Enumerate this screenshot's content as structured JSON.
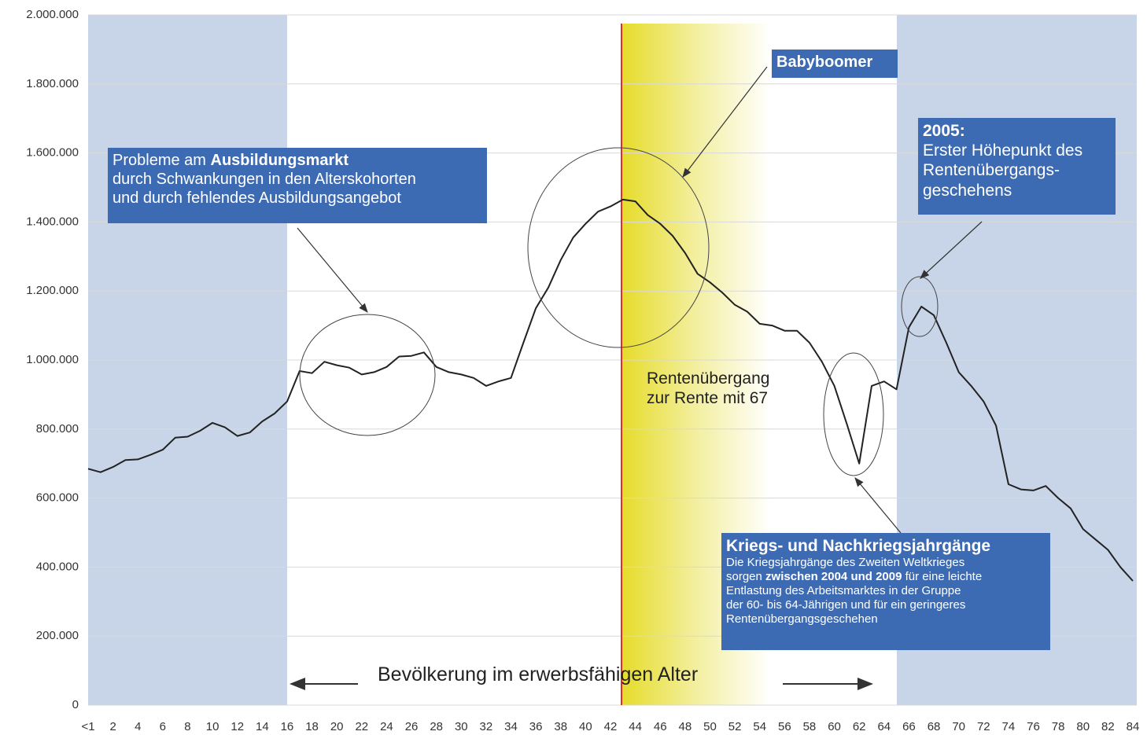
{
  "chart_data": {
    "type": "line",
    "categories": [
      "<1",
      null,
      "2",
      null,
      "4",
      null,
      "6",
      null,
      "8",
      null,
      "10",
      null,
      "12",
      null,
      "14",
      null,
      "16",
      null,
      "18",
      null,
      "20",
      null,
      "22",
      null,
      "24",
      null,
      "26",
      null,
      "28",
      null,
      "30",
      null,
      "32",
      null,
      "34",
      null,
      "36",
      null,
      "38",
      null,
      "40",
      null,
      "42",
      null,
      "44",
      null,
      "46",
      null,
      "48",
      null,
      "50",
      null,
      "52",
      null,
      "54",
      null,
      "56",
      null,
      "58",
      null,
      "60",
      null,
      "62",
      null,
      "64",
      null,
      "66",
      null,
      "68",
      null,
      "70",
      null,
      "72",
      null,
      "74",
      null,
      "76",
      null,
      "78",
      null,
      "80",
      null,
      "82",
      null,
      "84"
    ],
    "values": [
      685000,
      675000,
      690000,
      710000,
      712000,
      725000,
      740000,
      775000,
      778000,
      795000,
      818000,
      805000,
      780000,
      790000,
      822000,
      845000,
      880000,
      968000,
      962000,
      995000,
      985000,
      978000,
      958000,
      965000,
      980000,
      1010000,
      1012000,
      1022000,
      980000,
      965000,
      958000,
      948000,
      925000,
      938000,
      948000,
      1050000,
      1150000,
      1210000,
      1290000,
      1355000,
      1395000,
      1430000,
      1445000,
      1465000,
      1460000,
      1420000,
      1395000,
      1360000,
      1310000,
      1250000,
      1225000,
      1195000,
      1160000,
      1140000,
      1105000,
      1100000,
      1085000,
      1085000,
      1050000,
      995000,
      925000,
      815000,
      700000,
      925000,
      938000,
      915000,
      1095000,
      1155000,
      1130000,
      1050000,
      965000,
      925000,
      880000,
      810000,
      640000,
      625000,
      622000,
      635000,
      600000,
      570000,
      510000,
      480000,
      450000,
      400000,
      360000
    ],
    "color": "#222222",
    "ylim": [
      0,
      2000000
    ],
    "yticks": [
      0,
      {
        "value": 200000,
        "label": "200.000"
      },
      {
        "value": 400000,
        "label": "400.000"
      },
      {
        "value": 600000,
        "label": "600.000"
      },
      {
        "value": 800000,
        "label": "800.000"
      },
      {
        "value": 1000000,
        "label": "1.000.000"
      },
      {
        "value": 1200000,
        "label": "1.200.000"
      },
      {
        "value": 1400000,
        "label": "1.400.000"
      },
      {
        "value": 1600000,
        "label": "1.600.000"
      },
      {
        "value": 1800000,
        "label": "1.800.000"
      },
      {
        "value": 2000000,
        "label": "2.000.000"
      }
    ],
    "grid": true,
    "annotations": {
      "ausbildung": [
        [
          {
            "text": "Probleme am "
          },
          {
            "text": "Ausbildungsmarkt",
            "bold": true
          }
        ],
        [
          {
            "text": "durch Schwankungen in den Alterskohorten"
          }
        ],
        [
          {
            "text": "und durch fehlendes Ausbildungsangebot"
          }
        ]
      ],
      "babyboomer": [
        [
          {
            "text": "Babyboomer",
            "bold": true
          }
        ]
      ],
      "hoehepunkt": [
        [
          {
            "text": "2005:",
            "bold": true
          }
        ],
        [
          {
            "text": "Erster Höhepunkt des"
          }
        ],
        [
          {
            "text": "Rentenübergangs-"
          }
        ],
        [
          {
            "text": "geschehens"
          }
        ]
      ],
      "rente67": [
        [
          {
            "text": "Rentenübergang"
          }
        ],
        [
          {
            "text": "zur Rente mit 67"
          }
        ]
      ],
      "krieg": [
        [
          {
            "text": "Kriegs- und Nachkriegsjahrgänge",
            "bold": true
          }
        ],
        [
          {
            "text": "Die Kriegsjahrgänge des Zweiten Weltkrieges"
          }
        ],
        [
          {
            "text": "sorgen "
          },
          {
            "text": "zwischen 2004 und 2009",
            "bold": true
          },
          {
            "text": " für eine leichte"
          }
        ],
        [
          {
            "text": "Entlastung des Arbeitsmarktes in der Gruppe"
          }
        ],
        [
          {
            "text": "der 60- bis 64-Jährigen und für ein geringeres"
          }
        ],
        [
          {
            "text": "Rentenübergangsgeschehen"
          }
        ]
      ],
      "erwerb": [
        [
          {
            "text": "Bevölkerung im erwerbsfähigen Alter"
          }
        ]
      ]
    }
  }
}
